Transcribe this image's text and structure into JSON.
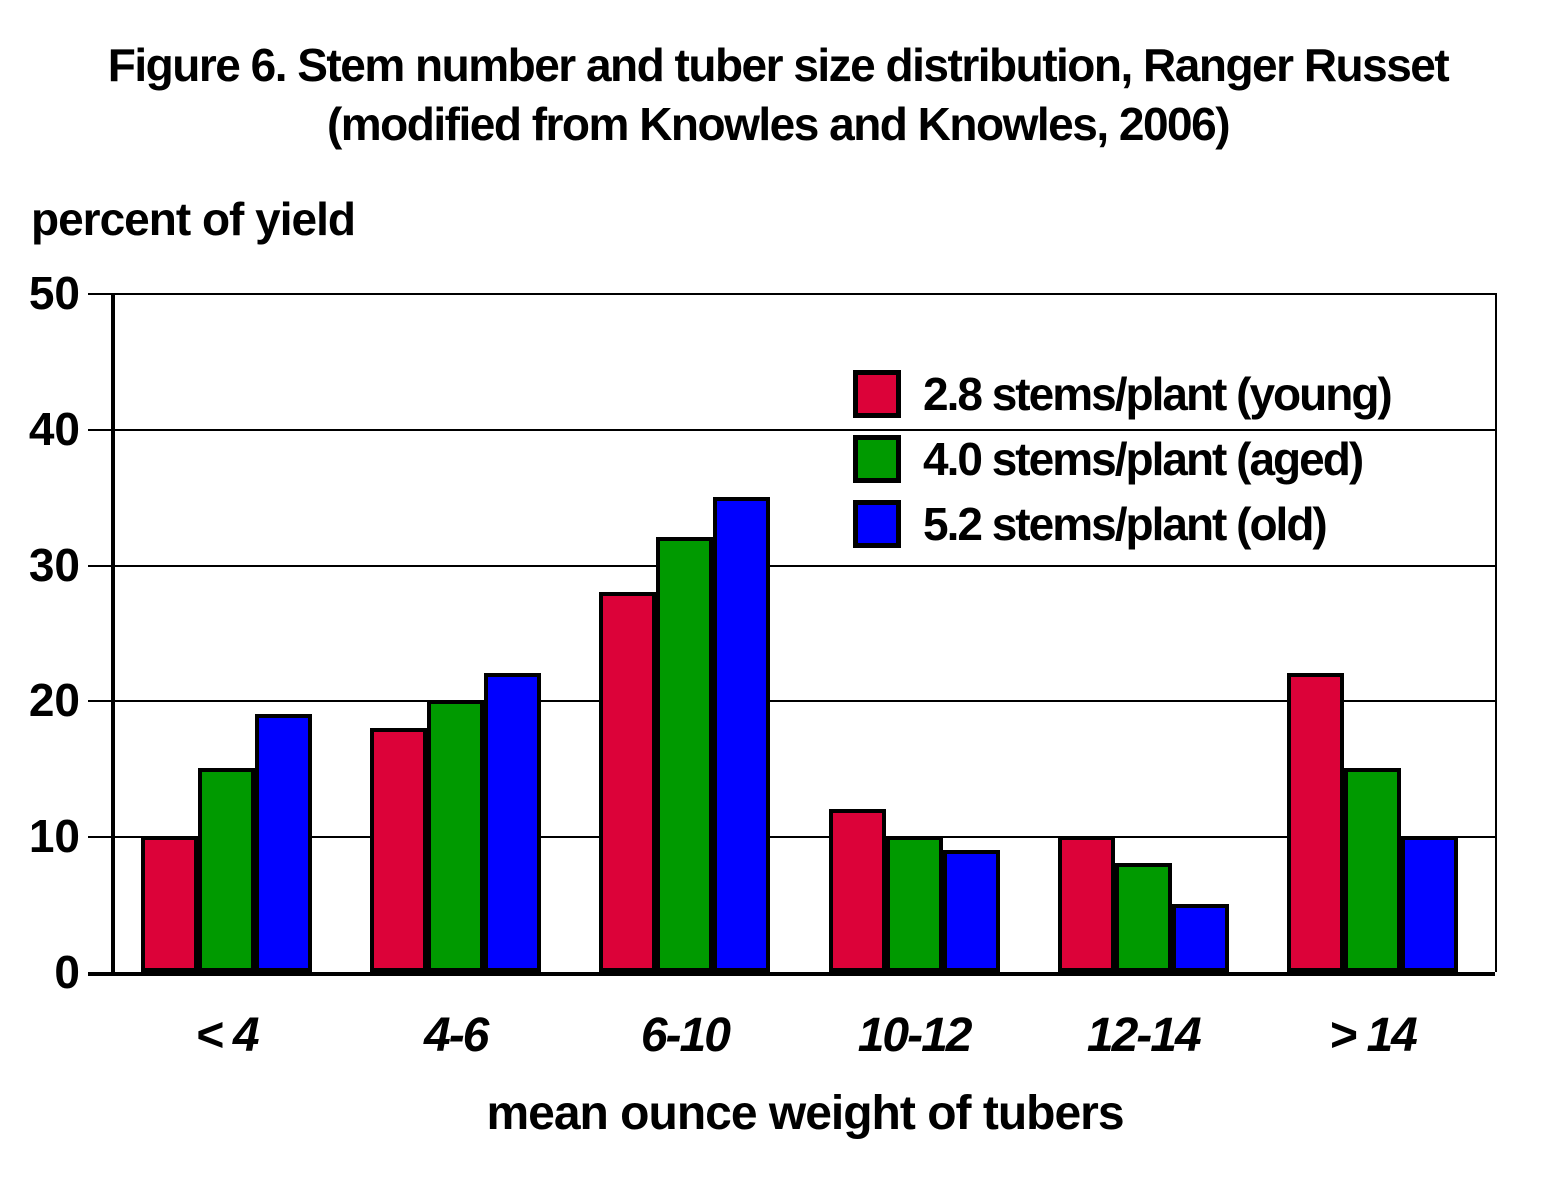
{
  "title": {
    "line1": "Figure 6. Stem number and tuber size distribution, Ranger Russet",
    "line2": "(modified from Knowles and Knowles, 2006)"
  },
  "y_axis": {
    "label": "percent of yield",
    "ticks": [
      "50",
      "40",
      "30",
      "20",
      "10",
      "0"
    ]
  },
  "x_axis": {
    "label": "mean ounce weight of tubers",
    "categories": [
      "< 4",
      "4-6",
      "6-10",
      "10-12",
      "12-14",
      "> 14"
    ]
  },
  "legend": {
    "items": [
      {
        "label": "2.8 stems/plant (young)",
        "color": "#DC0239"
      },
      {
        "label": "4.0 stems/plant (aged)",
        "color": "#009A00"
      },
      {
        "label": "5.2 stems/plant (old)",
        "color": "#0000FF"
      }
    ]
  },
  "chart_data": {
    "type": "bar",
    "title": "Figure 6. Stem number and tuber size distribution, Ranger Russet (modified from Knowles and Knowles, 2006)",
    "categories": [
      "< 4",
      "4-6",
      "6-10",
      "10-12",
      "12-14",
      "> 14"
    ],
    "series": [
      {
        "name": "2.8 stems/plant (young)",
        "color": "#DC0239",
        "values": [
          10,
          18,
          28,
          12,
          10,
          22
        ]
      },
      {
        "name": "4.0 stems/plant (aged)",
        "color": "#009A00",
        "values": [
          15,
          20,
          32,
          10,
          8,
          15
        ]
      },
      {
        "name": "5.2 stems/plant (old)",
        "color": "#0000FF",
        "values": [
          19,
          22,
          35,
          9,
          5,
          10
        ]
      }
    ],
    "xlabel": "mean ounce weight of tubers",
    "ylabel": "percent of yield",
    "ylim": [
      0,
      50
    ],
    "ytick_step": 10,
    "grid": true,
    "legend_position": "upper-right-inside",
    "bar_border_color": "#000000"
  },
  "colors": {
    "young_red": "#DC0239",
    "aged_green": "#009A00",
    "old_blue": "#0000FF",
    "axis_black": "#000000"
  }
}
